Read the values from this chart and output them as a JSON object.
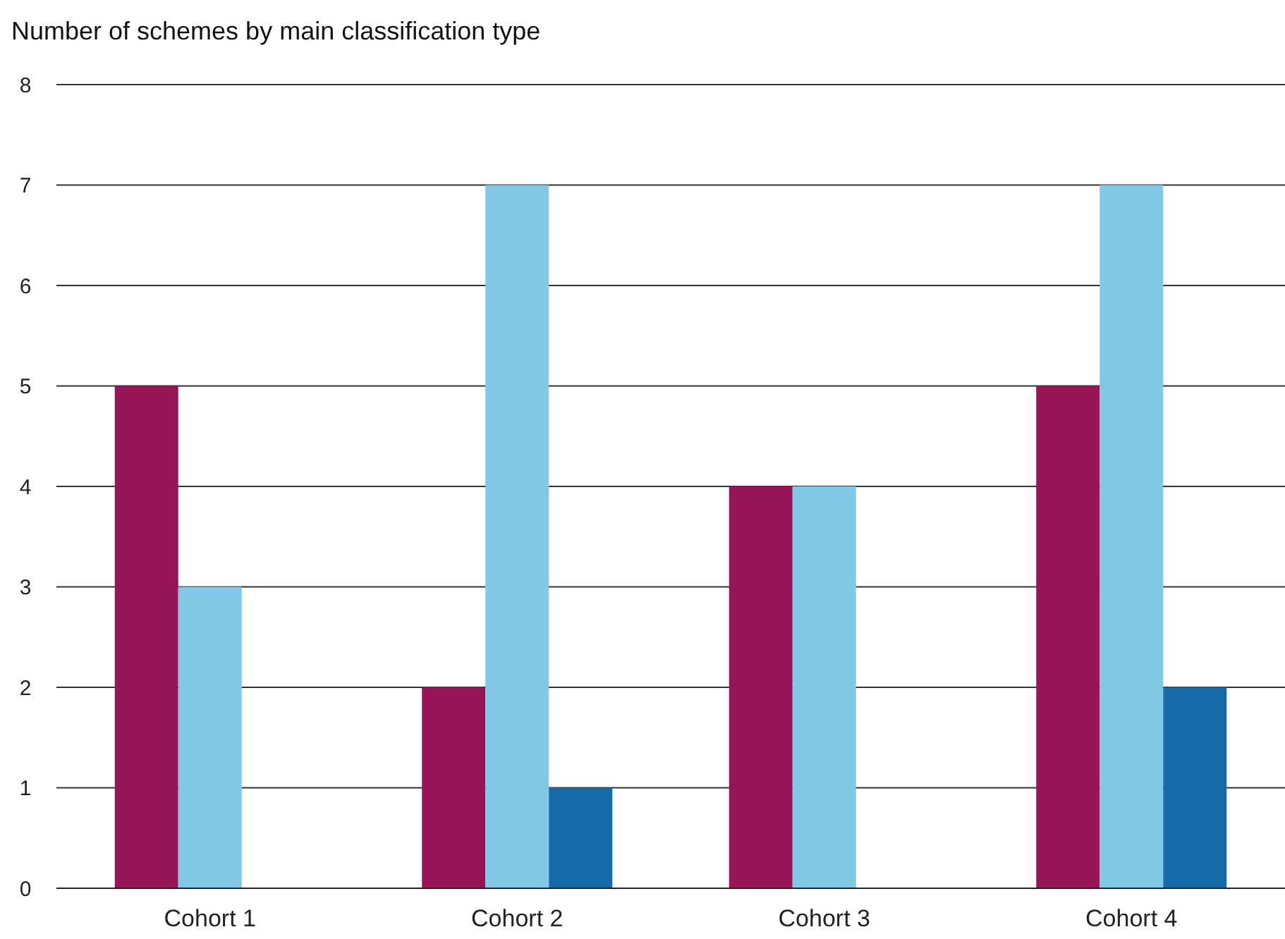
{
  "chart_data": {
    "type": "bar",
    "title": "Number of schemes by main classification type",
    "categories": [
      "Cohort 1",
      "Cohort 2",
      "Cohort 3",
      "Cohort 4"
    ],
    "series": [
      {
        "color": "#951557",
        "values": [
          5,
          2,
          4,
          5
        ]
      },
      {
        "color": "#84c8e8",
        "values": [
          3,
          7,
          4,
          7
        ]
      },
      {
        "color": "#176aa8",
        "values": [
          0,
          1,
          0,
          2
        ]
      }
    ],
    "ylim": [
      0,
      8
    ],
    "yticks": [
      0,
      1,
      2,
      3,
      4,
      5,
      6,
      7,
      8
    ],
    "grid": "y"
  }
}
